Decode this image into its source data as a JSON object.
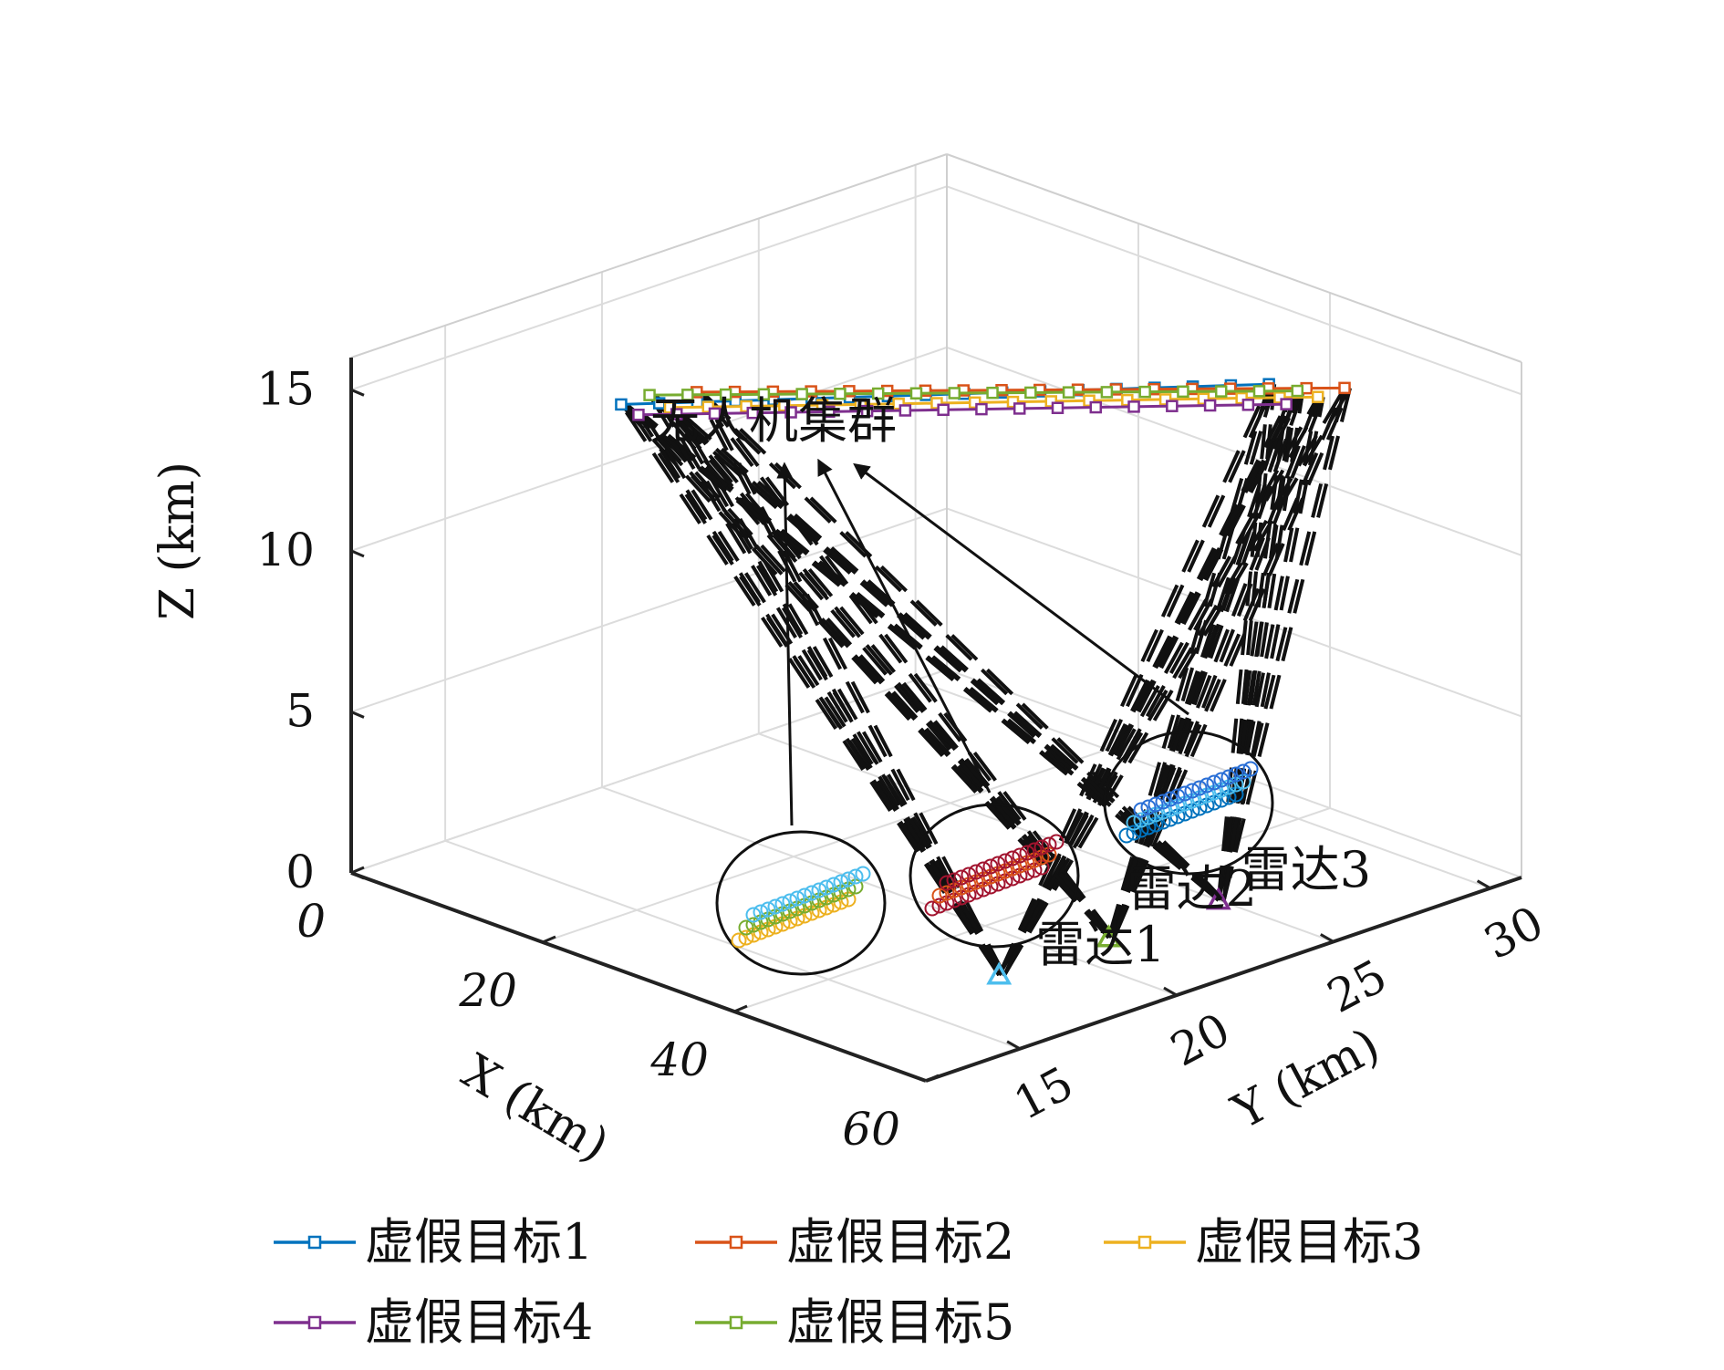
{
  "chart_data": {
    "type": "scatter3d",
    "xlabel": "X (km)",
    "ylabel": "Y (km)",
    "zlabel": "Z (km)",
    "xlim": [
      0,
      60
    ],
    "ylim": [
      12,
      31
    ],
    "zlim": [
      0,
      16
    ],
    "xticks": [
      "0",
      "20",
      "40",
      "60"
    ],
    "yticks": [
      "15",
      "20",
      "25",
      "30"
    ],
    "zticks": [
      "0",
      "5",
      "10",
      "15"
    ],
    "grid": true,
    "legend_position": "bottom",
    "series": [
      {
        "name": "虚假目标1",
        "color": "#0072BD",
        "marker": "square",
        "x": [
          2,
          50
        ],
        "y": [
          20,
          26
        ],
        "z": [
          12.1,
          15.9
        ]
      },
      {
        "name": "虚假目标2",
        "color": "#D95319",
        "marker": "square",
        "x": [
          4,
          52
        ],
        "y": [
          21.8,
          27.8
        ],
        "z": [
          12.1,
          15.4
        ]
      },
      {
        "name": "虚假目标3",
        "color": "#EDB120",
        "marker": "square",
        "x": [
          3.5,
          51.5
        ],
        "y": [
          21.1,
          27.1
        ],
        "z": [
          11.8,
          15.3
        ]
      },
      {
        "name": "虚假目标4",
        "color": "#7E2F8E",
        "marker": "square",
        "x": [
          2.5,
          50.5
        ],
        "y": [
          20.4,
          26.4
        ],
        "z": [
          11.7,
          15.2
        ]
      },
      {
        "name": "虚假目标5",
        "color": "#77AC30",
        "marker": "square",
        "x": [
          3,
          51
        ],
        "y": [
          20.6,
          26.6
        ],
        "z": [
          12.3,
          15.6
        ]
      }
    ],
    "radars": [
      {
        "label": "雷达1",
        "color": "#4DBEEE",
        "x": 48,
        "y": 18,
        "z": 0
      },
      {
        "label": "雷达2",
        "color": "#77AC30",
        "x": 48,
        "y": 21.5,
        "z": 0
      },
      {
        "label": "雷达3",
        "color": "#7E2F8E",
        "x": 48,
        "y": 25,
        "z": 0
      }
    ],
    "annotations": [
      "无人机集群",
      "雷达1",
      "雷达2",
      "雷达3"
    ]
  }
}
